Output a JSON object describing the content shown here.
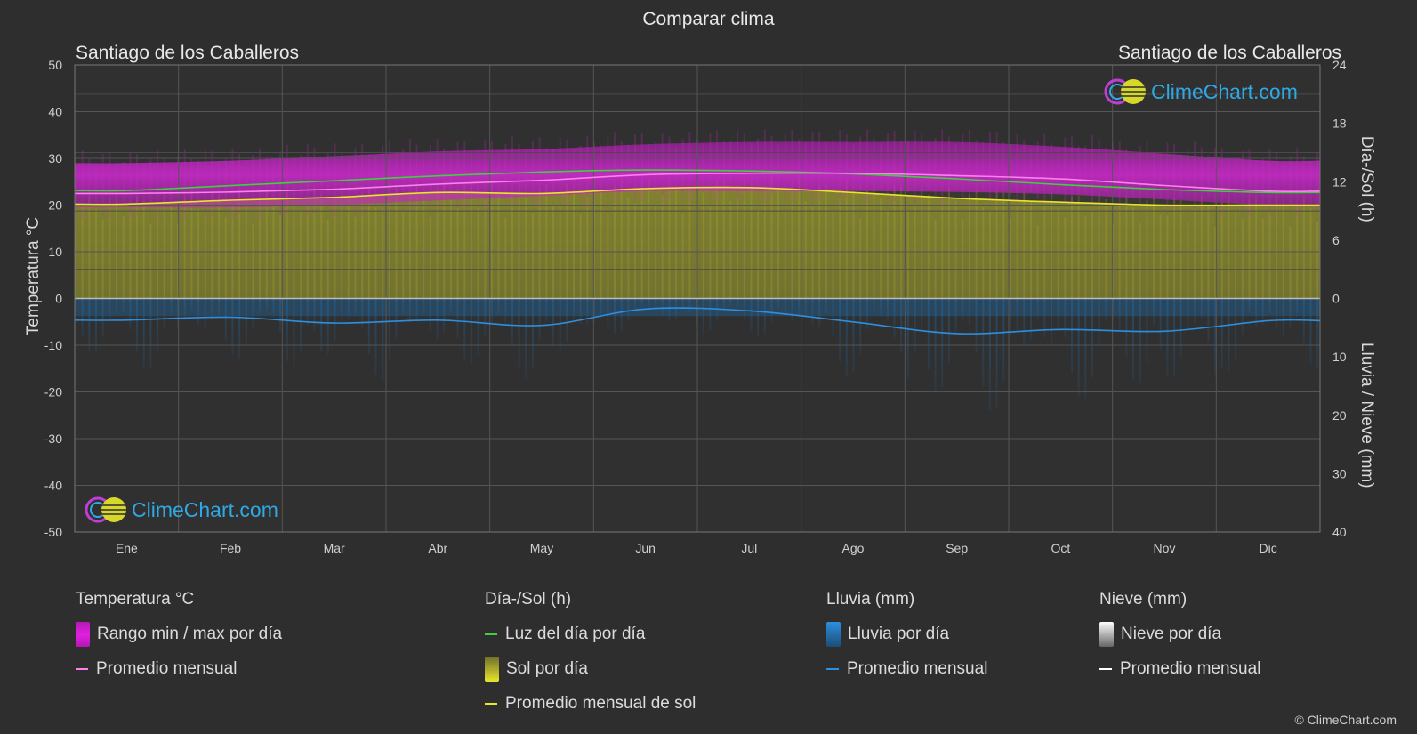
{
  "page": {
    "title": "Comparar clima",
    "city_left": "Santiago de los Caballeros",
    "city_right": "Santiago de los Caballeros",
    "copyright": "© ClimeChart.com"
  },
  "logo": {
    "text": "ClimeChart.com"
  },
  "chart_data": {
    "type": "line",
    "x": [
      "Ene",
      "Feb",
      "Mar",
      "Abr",
      "May",
      "Jun",
      "Jul",
      "Ago",
      "Sep",
      "Oct",
      "Nov",
      "Dic"
    ],
    "left_axis": {
      "label": "Temperatura °C",
      "range": [
        -50,
        50
      ],
      "ticks": [
        50,
        40,
        30,
        20,
        10,
        0,
        -10,
        -20,
        -30,
        -40,
        -50
      ]
    },
    "right_axis_top": {
      "label": "Día-/Sol (h)",
      "range": [
        0,
        24
      ],
      "ticks": [
        24,
        18,
        12,
        6,
        0
      ]
    },
    "right_axis_bottom": {
      "label": "Lluvia / Nieve (mm)",
      "range": [
        0,
        40
      ],
      "ticks": [
        0,
        10,
        20,
        30,
        40
      ]
    },
    "grid": true,
    "series": [
      {
        "name": "Luz del día por día",
        "axis": "day_sun_h",
        "color": "#3fcf3f",
        "values": [
          11.1,
          11.6,
          12.1,
          12.6,
          13.0,
          13.2,
          13.1,
          12.8,
          12.3,
          11.7,
          11.2,
          10.9
        ]
      },
      {
        "name": "Promedio mensual de sol",
        "axis": "day_sun_h",
        "color": "#e6e62a",
        "values": [
          9.7,
          10.1,
          10.4,
          10.9,
          10.8,
          11.3,
          11.4,
          10.9,
          10.3,
          9.9,
          9.6,
          9.6
        ]
      },
      {
        "name": "Promedio mensual",
        "group": "Temperatura °C",
        "axis": "temperature_c",
        "color": "#ff7ef0",
        "values": [
          22.5,
          22.8,
          23.4,
          24.5,
          25.3,
          26.5,
          26.8,
          26.8,
          26.3,
          25.6,
          24.2,
          23.0
        ]
      },
      {
        "name": "Rango min / max por día",
        "axis": "temperature_c",
        "color": "#d92bd9",
        "min": [
          19.5,
          19.5,
          20.0,
          21.0,
          22.0,
          23.0,
          23.0,
          23.0,
          22.8,
          22.3,
          21.2,
          20.0
        ],
        "max": [
          29.0,
          29.5,
          30.5,
          31.5,
          32.0,
          33.0,
          33.5,
          33.5,
          33.5,
          32.5,
          31.0,
          29.5
        ]
      },
      {
        "name": "Promedio mensual",
        "group": "Lluvia (mm)",
        "axis": "rain_mm",
        "color": "#2d8fe0",
        "values": [
          3.7,
          3.2,
          4.2,
          3.7,
          4.6,
          1.8,
          2.1,
          4.0,
          6.0,
          5.3,
          5.6,
          3.8
        ]
      },
      {
        "name": "Promedio mensual",
        "group": "Nieve (mm)",
        "axis": "snow_mm",
        "color": "#ffffff",
        "values": [
          0,
          0,
          0,
          0,
          0,
          0,
          0,
          0,
          0,
          0,
          0,
          0
        ]
      }
    ]
  },
  "legend": {
    "temp": {
      "title": "Temperatura °C",
      "item1": "Rango min / max por día",
      "item2": "Promedio mensual",
      "color_range": "#e020e0",
      "color_avg": "#ff7ef0"
    },
    "sun": {
      "title": "Día-/Sol (h)",
      "item1": "Luz del día por día",
      "item2": "Sol por día",
      "item3": "Promedio mensual de sol",
      "color_day": "#3fcf3f",
      "color_sun": "#c8c832",
      "color_avg": "#e6e62a"
    },
    "rain": {
      "title": "Lluvia (mm)",
      "item1": "Lluvia por día",
      "item2": "Promedio mensual",
      "color_bar": "#2d8fe0",
      "color_avg": "#2d8fe0"
    },
    "snow": {
      "title": "Nieve (mm)",
      "item1": "Nieve por día",
      "item2": "Promedio mensual",
      "color_bar": "#dddddd",
      "color_avg": "#ffffff"
    }
  }
}
